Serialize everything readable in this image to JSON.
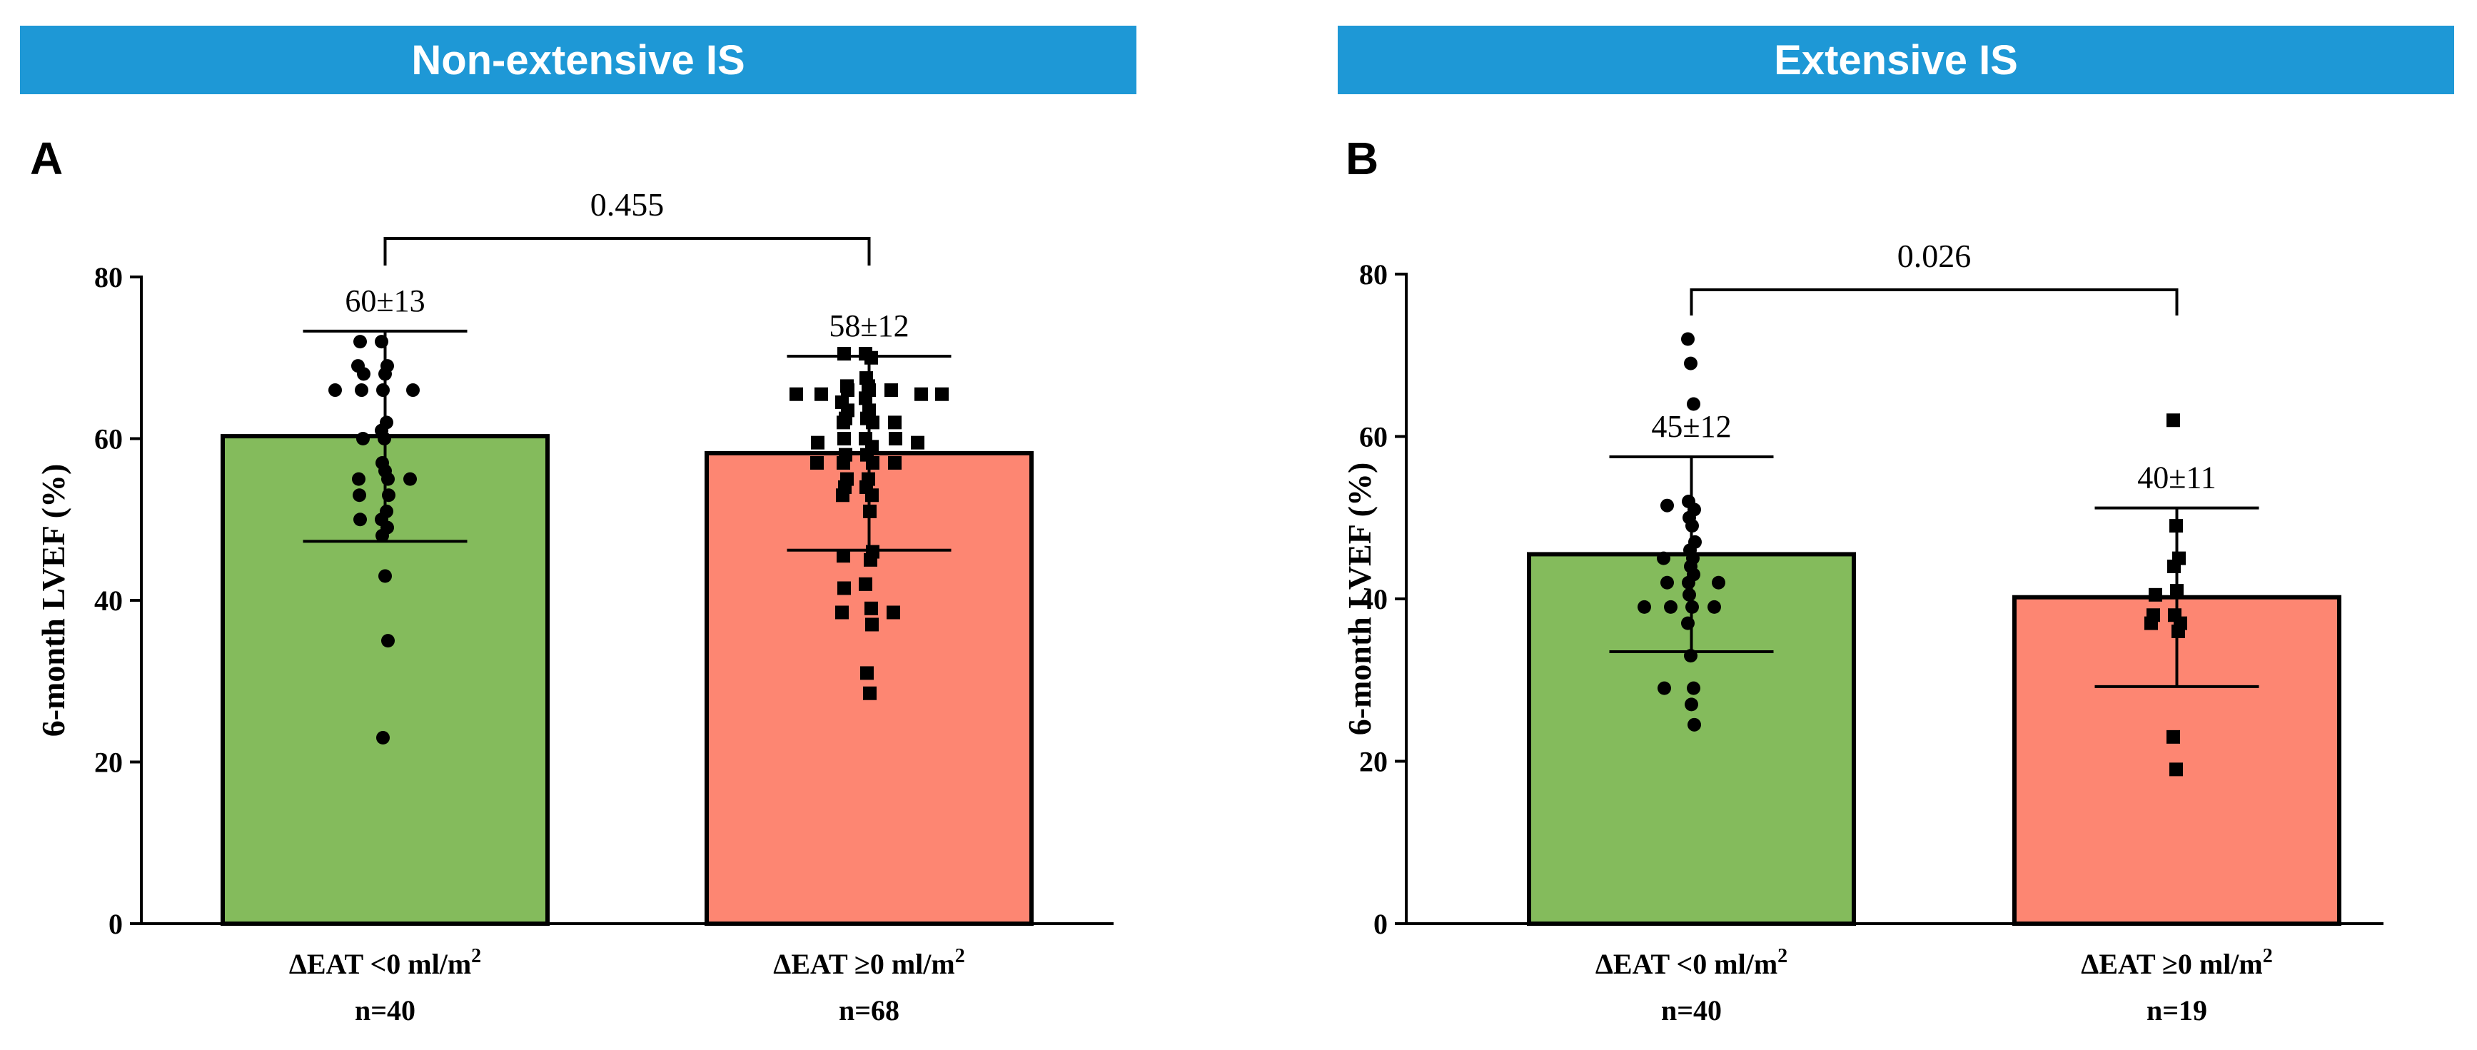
{
  "banners": {
    "left": "Non-extensive IS",
    "right": "Extensive IS"
  },
  "colors": {
    "green": "#84bb5c",
    "salmon": "#fd8672",
    "banner": "#1e98d6"
  },
  "chart_data": [
    {
      "type": "bar",
      "panel": "A",
      "ylabel": "6-month LVEF (%)",
      "ylim": [
        0,
        80
      ],
      "yticks": [
        "0",
        "20",
        "40",
        "60",
        "80"
      ],
      "categories": [
        {
          "label": "ΔEAT <0 ml/m",
          "sup": "2",
          "n": "n=40"
        },
        {
          "label": "ΔEAT ≥0 ml/m",
          "sup": "2",
          "n": "n=68"
        }
      ],
      "values": [
        60.3,
        58.2
      ],
      "sd": [
        13,
        12
      ],
      "bar_labels": [
        "60±13",
        "58±12"
      ],
      "p_value": "0.455",
      "points": [
        [
          72,
          72,
          69,
          69,
          68,
          68,
          66,
          66,
          66,
          66,
          62,
          61,
          60,
          60,
          57,
          56,
          55,
          55,
          55,
          53,
          53,
          51,
          50,
          50,
          49,
          48,
          43,
          35,
          23
        ],
        [
          70.5,
          70.5,
          70,
          67.5,
          66,
          66,
          66,
          65.5,
          65.5,
          65.5,
          65.5,
          65,
          66.5,
          66.5,
          64.5,
          63.5,
          63.5,
          62.5,
          62.5,
          62,
          62,
          62,
          60,
          60,
          60,
          59.5,
          59.5,
          59,
          58,
          58,
          57,
          57,
          57,
          57,
          55,
          55,
          54,
          54,
          53,
          53,
          51,
          46,
          45.5,
          45,
          42,
          41.5,
          39,
          38.5,
          38.5,
          37,
          31,
          28.5
        ]
      ]
    },
    {
      "type": "bar",
      "panel": "B",
      "ylabel": "6-month LVEF (%)",
      "ylim": [
        0,
        80
      ],
      "yticks": [
        "0",
        "20",
        "40",
        "60",
        "80"
      ],
      "categories": [
        {
          "label": "ΔEAT <0 ml/m",
          "sup": "2",
          "n": "n=40"
        },
        {
          "label": "ΔEAT ≥0 ml/m",
          "sup": "2",
          "n": "n=19"
        }
      ],
      "values": [
        45.5,
        40.2
      ],
      "sd": [
        12,
        11
      ],
      "bar_labels": [
        "45±12",
        "40±11"
      ],
      "p_value": "0.026",
      "points": [
        [
          72,
          69,
          64,
          52,
          51.5,
          51,
          50,
          49,
          47,
          46,
          45,
          45,
          44,
          43,
          42,
          42,
          42,
          40.5,
          39,
          39,
          39,
          39,
          37,
          33,
          29,
          29,
          27,
          24.5
        ],
        [
          62,
          49,
          45,
          44,
          41,
          40.5,
          38,
          38,
          37,
          37,
          36,
          23,
          19
        ]
      ]
    }
  ]
}
